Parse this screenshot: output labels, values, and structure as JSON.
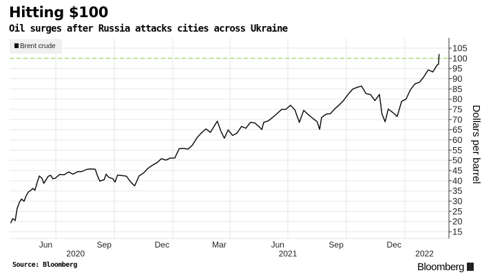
{
  "chart_data": {
    "type": "line",
    "title": "Hitting $100",
    "subtitle": "Oil surges after Russia attacks cities across Ukraine",
    "ylabel": "Dollars per barrel",
    "xlabel": "",
    "ylim": [
      13,
      108
    ],
    "yticks": [
      15,
      20,
      25,
      30,
      35,
      40,
      45,
      50,
      55,
      60,
      65,
      70,
      75,
      80,
      85,
      90,
      95,
      100,
      105
    ],
    "xtick_labels": [
      {
        "label": "Jun",
        "date": "2020-06-15"
      },
      {
        "label": "Sep",
        "date": "2020-09-15"
      },
      {
        "label": "Dec",
        "date": "2020-12-15"
      },
      {
        "label": "Mar",
        "date": "2021-03-15"
      },
      {
        "label": "Jun",
        "date": "2021-06-15"
      },
      {
        "label": "Sep",
        "date": "2021-09-15"
      },
      {
        "label": "Dec",
        "date": "2021-12-15"
      }
    ],
    "year_labels": [
      {
        "label": "2020",
        "date": "2020-08-01"
      },
      {
        "label": "2021",
        "date": "2021-07-01"
      },
      {
        "label": "2022",
        "date": "2022-02-01"
      }
    ],
    "grid": true,
    "legend": {
      "position": "top-left",
      "entries": [
        "Brent crude"
      ]
    },
    "reference_line": {
      "value": 100,
      "color": "#a8d86e",
      "style": "dashed"
    },
    "series": [
      {
        "name": "Brent crude",
        "color": "#111111",
        "points": [
          [
            "2020-04-21",
            19.3
          ],
          [
            "2020-04-24",
            21.4
          ],
          [
            "2020-04-28",
            20.5
          ],
          [
            "2020-05-01",
            26.4
          ],
          [
            "2020-05-05",
            29.7
          ],
          [
            "2020-05-08",
            31.0
          ],
          [
            "2020-05-12",
            29.9
          ],
          [
            "2020-05-15",
            32.5
          ],
          [
            "2020-05-19",
            34.6
          ],
          [
            "2020-05-22",
            35.1
          ],
          [
            "2020-05-26",
            36.2
          ],
          [
            "2020-05-29",
            35.3
          ],
          [
            "2020-06-02",
            39.6
          ],
          [
            "2020-06-05",
            42.3
          ],
          [
            "2020-06-09",
            41.2
          ],
          [
            "2020-06-12",
            38.7
          ],
          [
            "2020-06-16",
            40.7
          ],
          [
            "2020-06-19",
            42.2
          ],
          [
            "2020-06-23",
            42.6
          ],
          [
            "2020-06-26",
            41.0
          ],
          [
            "2020-06-30",
            41.2
          ],
          [
            "2020-07-07",
            43.1
          ],
          [
            "2020-07-14",
            42.9
          ],
          [
            "2020-07-21",
            44.3
          ],
          [
            "2020-07-28",
            43.2
          ],
          [
            "2020-08-04",
            44.4
          ],
          [
            "2020-08-11",
            44.5
          ],
          [
            "2020-08-18",
            45.5
          ],
          [
            "2020-08-25",
            45.8
          ],
          [
            "2020-09-01",
            45.6
          ],
          [
            "2020-09-04",
            42.7
          ],
          [
            "2020-09-08",
            39.8
          ],
          [
            "2020-09-15",
            40.5
          ],
          [
            "2020-09-18",
            43.2
          ],
          [
            "2020-09-22",
            41.7
          ],
          [
            "2020-09-29",
            40.9
          ],
          [
            "2020-10-02",
            39.3
          ],
          [
            "2020-10-06",
            42.7
          ],
          [
            "2020-10-13",
            42.5
          ],
          [
            "2020-10-20",
            42.2
          ],
          [
            "2020-10-27",
            39.2
          ],
          [
            "2020-11-02",
            37.5
          ],
          [
            "2020-11-09",
            42.4
          ],
          [
            "2020-11-16",
            43.8
          ],
          [
            "2020-11-23",
            46.1
          ],
          [
            "2020-11-30",
            47.6
          ],
          [
            "2020-12-07",
            48.8
          ],
          [
            "2020-12-14",
            50.8
          ],
          [
            "2020-12-21",
            50.1
          ],
          [
            "2020-12-28",
            51.1
          ],
          [
            "2021-01-04",
            51.1
          ],
          [
            "2021-01-11",
            55.7
          ],
          [
            "2021-01-18",
            55.9
          ],
          [
            "2021-01-25",
            55.5
          ],
          [
            "2021-02-01",
            57.5
          ],
          [
            "2021-02-08",
            61.1
          ],
          [
            "2021-02-15",
            63.4
          ],
          [
            "2021-02-22",
            65.4
          ],
          [
            "2021-03-01",
            63.7
          ],
          [
            "2021-03-08",
            67.2
          ],
          [
            "2021-03-12",
            69.2
          ],
          [
            "2021-03-18",
            64.0
          ],
          [
            "2021-03-23",
            60.8
          ],
          [
            "2021-03-29",
            64.9
          ],
          [
            "2021-04-05",
            62.2
          ],
          [
            "2021-04-12",
            63.3
          ],
          [
            "2021-04-19",
            66.6
          ],
          [
            "2021-04-26",
            65.7
          ],
          [
            "2021-05-03",
            68.6
          ],
          [
            "2021-05-10",
            68.3
          ],
          [
            "2021-05-17",
            66.4
          ],
          [
            "2021-05-21",
            65.1
          ],
          [
            "2021-05-24",
            68.6
          ],
          [
            "2021-05-31",
            69.3
          ],
          [
            "2021-06-07",
            71.0
          ],
          [
            "2021-06-14",
            72.9
          ],
          [
            "2021-06-21",
            74.9
          ],
          [
            "2021-06-28",
            75.0
          ],
          [
            "2021-07-05",
            77.0
          ],
          [
            "2021-07-12",
            74.8
          ],
          [
            "2021-07-19",
            68.6
          ],
          [
            "2021-07-26",
            74.5
          ],
          [
            "2021-08-02",
            72.4
          ],
          [
            "2021-08-09",
            70.6
          ],
          [
            "2021-08-16",
            69.0
          ],
          [
            "2021-08-20",
            65.2
          ],
          [
            "2021-08-23",
            71.0
          ],
          [
            "2021-08-30",
            72.6
          ],
          [
            "2021-09-06",
            72.9
          ],
          [
            "2021-09-13",
            75.3
          ],
          [
            "2021-09-20",
            77.2
          ],
          [
            "2021-09-27",
            79.5
          ],
          [
            "2021-10-04",
            82.4
          ],
          [
            "2021-10-11",
            84.9
          ],
          [
            "2021-10-18",
            85.8
          ],
          [
            "2021-10-25",
            86.4
          ],
          [
            "2021-11-01",
            82.7
          ],
          [
            "2021-11-08",
            82.2
          ],
          [
            "2021-11-15",
            79.3
          ],
          [
            "2021-11-22",
            82.3
          ],
          [
            "2021-11-26",
            72.7
          ],
          [
            "2021-12-01",
            68.9
          ],
          [
            "2021-12-06",
            75.1
          ],
          [
            "2021-12-13",
            73.5
          ],
          [
            "2021-12-20",
            71.5
          ],
          [
            "2021-12-27",
            78.9
          ],
          [
            "2022-01-03",
            80.0
          ],
          [
            "2022-01-10",
            84.7
          ],
          [
            "2022-01-17",
            87.5
          ],
          [
            "2022-01-24",
            88.2
          ],
          [
            "2022-01-31",
            91.0
          ],
          [
            "2022-02-07",
            94.4
          ],
          [
            "2022-02-14",
            93.3
          ],
          [
            "2022-02-21",
            96.8
          ],
          [
            "2022-02-23",
            97.0
          ],
          [
            "2022-02-24",
            102.0
          ]
        ]
      }
    ]
  },
  "footer": {
    "source": "Source: Bloomberg",
    "brand": "Bloomberg"
  }
}
